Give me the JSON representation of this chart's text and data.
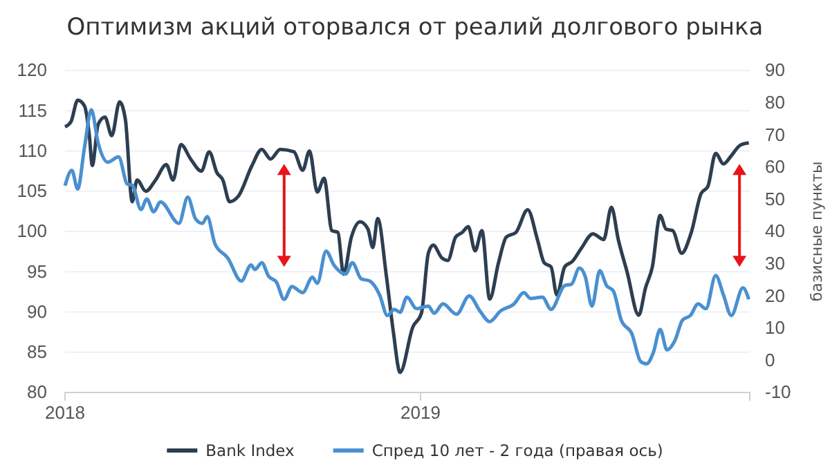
{
  "chart_data": {
    "type": "line",
    "title": "Оптимизм акций оторвался от реалий долгового рынка",
    "y2label": "базисные пункты",
    "xlim": [
      "2018-01-01",
      "2019-12-05"
    ],
    "xticks": [
      "2018",
      "2019"
    ],
    "ylim": [
      80,
      120
    ],
    "yticks": [
      80,
      85,
      90,
      95,
      100,
      105,
      110,
      115,
      120
    ],
    "y2lim": [
      -10,
      90
    ],
    "y2ticks": [
      -10,
      0,
      10,
      20,
      30,
      40,
      50,
      60,
      70,
      80,
      90
    ],
    "grid": "y",
    "legend": "bottom",
    "line_style": "solid",
    "marker": "none",
    "series": [
      {
        "name": "Bank Index",
        "color": "#2d3e50",
        "axis": "y",
        "x": [
          "2018-01-01",
          "2018-01-07",
          "2018-01-14",
          "2018-01-21",
          "2018-01-26",
          "2018-01-29",
          "2018-02-04",
          "2018-02-11",
          "2018-02-18",
          "2018-02-26",
          "2018-03-04",
          "2018-03-11",
          "2018-03-16",
          "2018-03-25",
          "2018-04-04",
          "2018-04-15",
          "2018-04-22",
          "2018-04-30",
          "2018-05-10",
          "2018-05-21",
          "2018-05-29",
          "2018-06-06",
          "2018-06-12",
          "2018-06-19",
          "2018-06-28",
          "2018-07-12",
          "2018-07-22",
          "2018-07-31",
          "2018-08-10",
          "2018-08-24",
          "2018-09-02",
          "2018-09-09",
          "2018-09-17",
          "2018-09-24",
          "2018-10-02",
          "2018-10-08",
          "2018-10-14",
          "2018-10-22",
          "2018-10-31",
          "2018-11-08",
          "2018-11-13",
          "2018-11-18",
          "2018-11-27",
          "2018-12-04",
          "2018-12-11",
          "2018-12-24",
          "2019-01-02",
          "2019-01-09",
          "2019-01-14",
          "2019-01-23",
          "2019-01-29",
          "2019-02-06",
          "2019-02-13",
          "2019-02-19",
          "2019-02-26",
          "2019-03-05",
          "2019-03-13",
          "2019-03-22",
          "2019-03-30",
          "2019-04-09",
          "2019-04-21",
          "2019-05-01",
          "2019-05-08",
          "2019-05-15",
          "2019-05-21",
          "2019-05-29",
          "2019-06-06",
          "2019-06-15",
          "2019-06-27",
          "2019-07-08",
          "2019-07-16",
          "2019-07-23",
          "2019-08-01",
          "2019-08-13",
          "2019-08-20",
          "2019-08-27",
          "2019-09-04",
          "2019-09-10",
          "2019-09-17",
          "2019-09-26",
          "2019-10-06",
          "2019-10-16",
          "2019-10-23",
          "2019-10-31",
          "2019-11-08",
          "2019-11-16",
          "2019-11-25",
          "2019-12-04"
        ],
        "values": [
          113.0,
          113.6,
          116.3,
          115.6,
          111.9,
          108.2,
          113.3,
          114.2,
          111.9,
          116.1,
          113.9,
          103.7,
          106.4,
          105.0,
          106.4,
          108.3,
          106.4,
          110.8,
          109.0,
          107.5,
          109.9,
          107.3,
          106.4,
          103.7,
          104.4,
          108.2,
          110.2,
          109.0,
          110.2,
          109.9,
          107.6,
          110.0,
          104.9,
          106.6,
          100.1,
          99.9,
          94.7,
          99.3,
          101.2,
          100.3,
          98.0,
          101.6,
          94.4,
          87.6,
          82.5,
          88.1,
          89.9,
          97.3,
          98.3,
          96.7,
          96.4,
          99.3,
          99.9,
          100.6,
          97.6,
          100.1,
          91.6,
          96.1,
          99.3,
          99.9,
          102.7,
          99.0,
          96.1,
          95.6,
          92.1,
          95.6,
          96.3,
          97.9,
          99.7,
          99.0,
          103.0,
          99.0,
          95.0,
          89.6,
          93.0,
          95.6,
          102.0,
          100.3,
          100.1,
          97.3,
          99.9,
          104.7,
          105.6,
          109.7,
          108.4,
          109.4,
          110.7,
          111.0
        ]
      },
      {
        "name": "Спред 10 лет - 2 года (правая ось)",
        "color": "#4a90d0",
        "axis": "y2",
        "x": [
          "2018-01-01",
          "2018-01-08",
          "2018-01-14",
          "2018-01-21",
          "2018-01-28",
          "2018-02-04",
          "2018-02-14",
          "2018-02-25",
          "2018-03-06",
          "2018-03-11",
          "2018-03-20",
          "2018-03-26",
          "2018-04-02",
          "2018-04-09",
          "2018-04-28",
          "2018-05-07",
          "2018-05-15",
          "2018-05-22",
          "2018-05-27",
          "2018-06-04",
          "2018-06-17",
          "2018-07-01",
          "2018-07-11",
          "2018-07-15",
          "2018-07-22",
          "2018-07-29",
          "2018-08-06",
          "2018-08-14",
          "2018-08-22",
          "2018-09-02",
          "2018-09-12",
          "2018-09-17",
          "2018-09-26",
          "2018-10-04",
          "2018-10-16",
          "2018-10-23",
          "2018-11-01",
          "2018-11-10",
          "2018-11-20",
          "2018-11-28",
          "2018-12-05",
          "2018-12-11",
          "2018-12-18",
          "2018-12-28",
          "2019-01-09",
          "2019-01-15",
          "2019-01-24",
          "2019-02-07",
          "2019-02-20",
          "2019-03-03",
          "2019-03-13",
          "2019-03-24",
          "2019-04-07",
          "2019-04-17",
          "2019-04-24",
          "2019-05-06",
          "2019-05-15",
          "2019-05-29",
          "2019-06-05",
          "2019-06-13",
          "2019-06-19",
          "2019-06-26",
          "2019-07-04",
          "2019-07-11",
          "2019-07-18",
          "2019-07-26",
          "2019-08-06",
          "2019-08-15",
          "2019-08-21",
          "2019-08-28",
          "2019-09-04",
          "2019-09-11",
          "2019-09-19",
          "2019-09-27",
          "2019-10-05",
          "2019-10-13",
          "2019-10-21",
          "2019-10-31",
          "2019-11-08",
          "2019-11-16",
          "2019-11-28",
          "2019-12-04"
        ],
        "values": [
          54.2,
          59.0,
          53.2,
          66.1,
          77.8,
          67.5,
          61.5,
          63.2,
          54.7,
          54.4,
          46.8,
          50.1,
          46.1,
          49.2,
          42.5,
          50.7,
          43.9,
          42.5,
          44.6,
          36.1,
          31.8,
          24.6,
          29.6,
          28.2,
          30.3,
          26.1,
          24.3,
          18.9,
          22.9,
          21.0,
          25.8,
          23.9,
          33.9,
          29.6,
          26.8,
          30.3,
          25.3,
          24.6,
          20.3,
          13.9,
          15.8,
          14.9,
          19.6,
          16.0,
          16.8,
          14.6,
          17.5,
          14.3,
          20.0,
          15.3,
          12.0,
          15.3,
          17.5,
          21.0,
          19.2,
          19.6,
          15.8,
          23.2,
          23.6,
          28.6,
          26.1,
          16.8,
          27.8,
          23.2,
          21.5,
          12.5,
          8.2,
          -0.4,
          -1.1,
          2.4,
          9.6,
          3.2,
          6.0,
          12.5,
          13.9,
          17.5,
          16.0,
          26.3,
          20.3,
          13.9,
          22.5,
          18.9
        ]
      }
    ]
  }
}
